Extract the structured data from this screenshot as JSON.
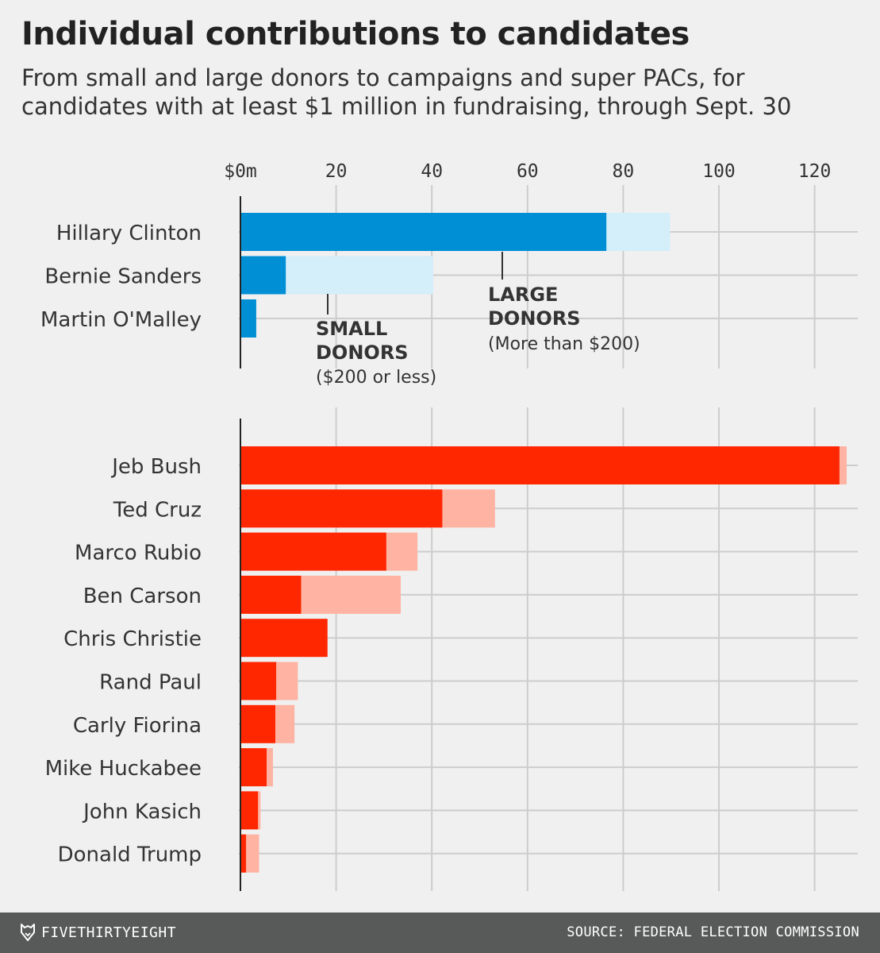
{
  "title": "Individual contributions to candidates",
  "subtitle": "From small and large donors to campaigns and super PACs, for candidates with at least $1 million in fundraising, through Sept. 30",
  "footer": {
    "brand": "FIVETHIRTYEIGHT",
    "source": "SOURCE: FEDERAL ELECTION COMMISSION"
  },
  "colors": {
    "dem_small": "#008fd5",
    "dem_large": "#d4eefa",
    "rep_small": "#ff2700",
    "rep_large": "#ffb3a3",
    "grid": "#cdcdcd",
    "axis": "#222222",
    "text": "#333333"
  },
  "chart_data": [
    {
      "type": "bar",
      "orientation": "horizontal",
      "stacked": true,
      "party": "Democratic",
      "xlim": [
        0,
        128
      ],
      "ticks": [
        0,
        20,
        40,
        60,
        80,
        100,
        120
      ],
      "tick_labels": [
        "$0m",
        "20",
        "40",
        "60",
        "80",
        "100",
        "120"
      ],
      "categories": [
        "Hillary Clinton",
        "Bernie Sanders",
        "Martin O'Malley"
      ],
      "series": [
        {
          "name": "SMALL DONORS",
          "values": [
            76.5,
            9.5,
            3.3
          ]
        },
        {
          "name": "LARGE DONORS",
          "values": [
            13.3,
            30.8,
            0
          ]
        }
      ],
      "annotations": [
        {
          "label": "SMALL",
          "label2": "DONORS",
          "note": "($200 or less)"
        },
        {
          "label": "LARGE",
          "label2": "DONORS",
          "note": "(More than $200)"
        }
      ]
    },
    {
      "type": "bar",
      "orientation": "horizontal",
      "stacked": true,
      "party": "Republican",
      "xlim": [
        0,
        128
      ],
      "ticks": [
        0,
        20,
        40,
        60,
        80,
        100,
        120
      ],
      "categories": [
        "Jeb Bush",
        "Ted Cruz",
        "Marco Rubio",
        "Ben Carson",
        "Chris Christie",
        "Rand Paul",
        "Carly Fiorina",
        "Mike Huckabee",
        "John Kasich",
        "Donald Trump"
      ],
      "series": [
        {
          "name": "Small donors",
          "values": [
            125.2,
            42.2,
            30.5,
            12.7,
            18.2,
            7.5,
            7.3,
            5.5,
            3.7,
            1.2
          ]
        },
        {
          "name": "Large donors",
          "values": [
            1.5,
            11.0,
            6.5,
            20.8,
            0,
            4.5,
            4.0,
            1.3,
            0.5,
            2.7
          ]
        }
      ]
    }
  ]
}
